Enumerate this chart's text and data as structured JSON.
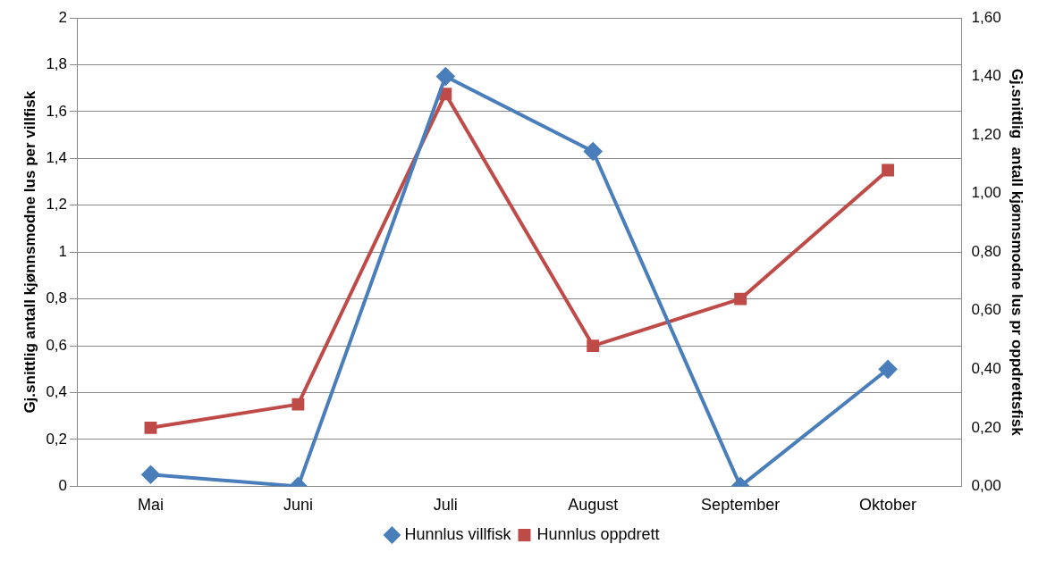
{
  "chart_data": {
    "type": "line",
    "categories": [
      "Mai",
      "Juni",
      "Juli",
      "August",
      "September",
      "Oktober"
    ],
    "ylabel": "Gj.snittlig antall kjønnsmodne lus per villfisk",
    "y2label": "Gj.snittlig  antall kjønnsmodne lus pr oppdrettsfisk",
    "series": [
      {
        "name": "Hunnlus villfisk",
        "color": "#4a7ebb",
        "values": [
          0.05,
          0,
          1.75,
          1.43,
          0,
          0.5
        ],
        "marker": "diamond"
      },
      {
        "name": "Hunnlus oppdrett",
        "color": "#be4b48",
        "values": [
          0.2,
          0.28,
          1.34,
          0.48,
          0.64,
          1.08
        ],
        "axis": "y2",
        "marker": "square"
      }
    ],
    "ylim": [
      0,
      2
    ],
    "yticks": [
      0,
      {
        "value": 0.2,
        "label": "0,2"
      },
      {
        "value": 0.4,
        "label": "0,4"
      },
      {
        "value": 0.6,
        "label": "0,6"
      },
      {
        "value": 0.8,
        "label": "0,8"
      },
      1,
      {
        "value": 1.2,
        "label": "1,2"
      },
      {
        "value": 1.4,
        "label": "1,4"
      },
      {
        "value": 1.6,
        "label": "1,6"
      },
      {
        "value": 1.8,
        "label": "1,8"
      },
      2
    ],
    "y2lim": [
      0,
      1.6
    ],
    "y2ticks": [
      {
        "value": 0,
        "label": "0,00"
      },
      {
        "value": 0.2,
        "label": "0,20"
      },
      {
        "value": 0.4,
        "label": "0,40"
      },
      {
        "value": 0.6,
        "label": "0,60"
      },
      {
        "value": 0.8,
        "label": "0,80"
      },
      {
        "value": 1,
        "label": "1,00"
      },
      {
        "value": 1.2,
        "label": "1,20"
      },
      {
        "value": 1.4,
        "label": "1,40"
      },
      {
        "value": 1.6,
        "label": "1,60"
      }
    ],
    "grid": "y",
    "legend": "bottom",
    "line_style": "solid"
  }
}
